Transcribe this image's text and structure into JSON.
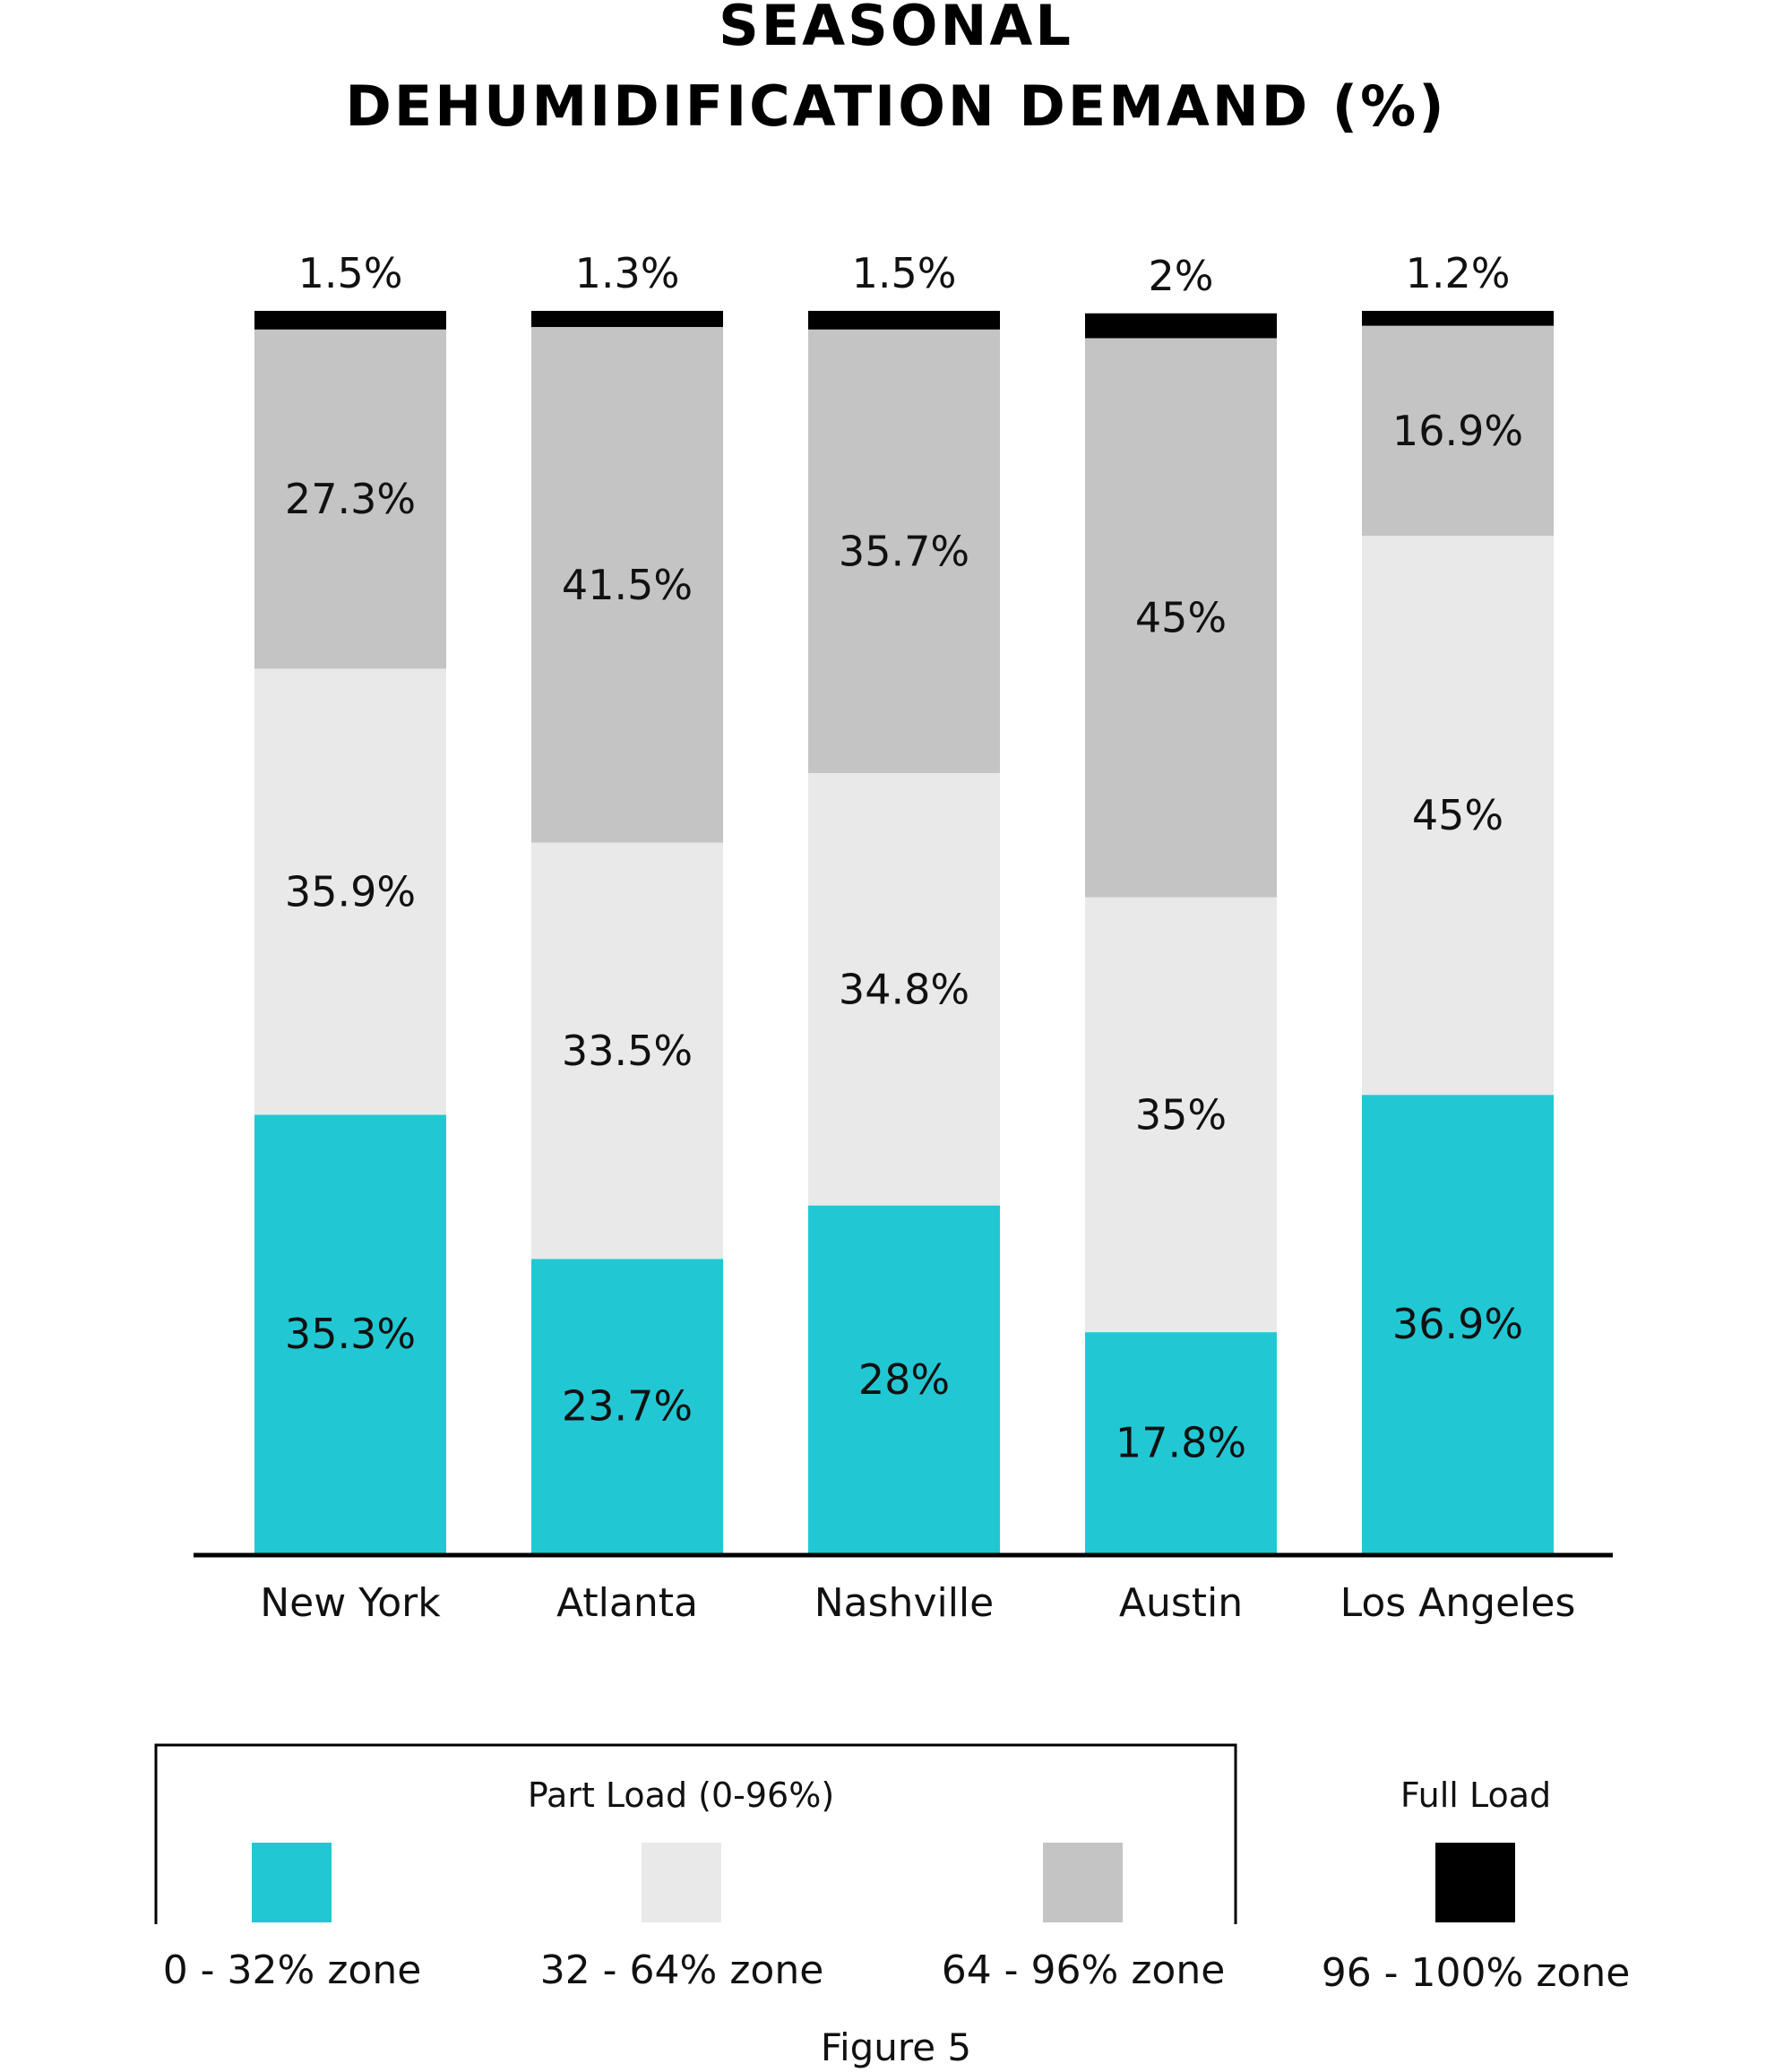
{
  "chart_data": {
    "type": "bar",
    "stacked": true,
    "title_line1": "SEASONAL",
    "title_line2": "DEHUMIDIFICATION DEMAND (%)",
    "categories": [
      "New York",
      "Atlanta",
      "Nashville",
      "Austin",
      "Los Angeles"
    ],
    "series": [
      {
        "key": "zone1",
        "color": "#21c8d4",
        "values": [
          35.3,
          23.7,
          28,
          17.8,
          36.9
        ],
        "labels": [
          "35.3%",
          "23.7%",
          "28%",
          "17.8%",
          "36.9%"
        ]
      },
      {
        "key": "zone2",
        "color": "#e9e9e9",
        "values": [
          35.9,
          33.5,
          34.8,
          35,
          45
        ],
        "labels": [
          "35.9%",
          "33.5%",
          "34.8%",
          "35%",
          "45%"
        ]
      },
      {
        "key": "zone3",
        "color": "#c4c4c4",
        "values": [
          27.3,
          41.5,
          35.7,
          45,
          16.9
        ],
        "labels": [
          "27.3%",
          "41.5%",
          "35.7%",
          "45%",
          "16.9%"
        ]
      },
      {
        "key": "zone4",
        "color": "#000000",
        "values": [
          1.5,
          1.3,
          1.5,
          2,
          1.2
        ],
        "labels": [
          "1.5%",
          "1.3%",
          "1.5%",
          "2%",
          "1.2%"
        ]
      }
    ],
    "legend": {
      "group_part_label": "Part Load (0-96%)",
      "group_full_label": "Full Load",
      "items": [
        {
          "label": "0 - 32% zone",
          "color": "#21c8d4"
        },
        {
          "label": "32 - 64% zone",
          "color": "#e9e9e9"
        },
        {
          "label": "64 - 96% zone",
          "color": "#c4c4c4"
        },
        {
          "label": "96 - 100% zone",
          "color": "#000000"
        }
      ]
    },
    "caption": "Figure 5"
  }
}
